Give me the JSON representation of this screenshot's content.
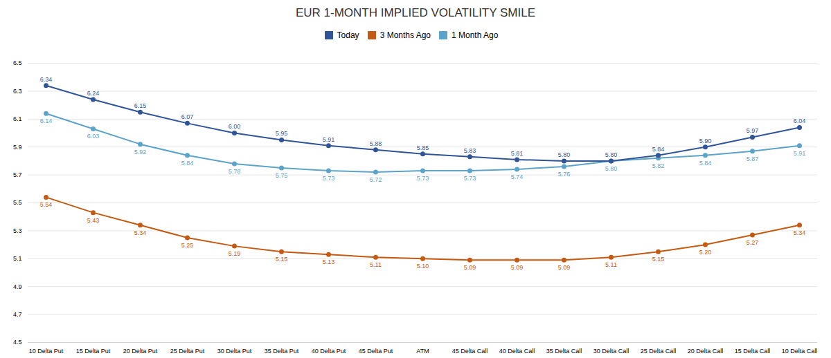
{
  "chart_data": {
    "type": "line",
    "title": "EUR 1-MONTH IMPLIED VOLATILITY SMILE",
    "categories": [
      "10 Delta Put",
      "15 Delta Put",
      "20 Delta Put",
      "25 Delta Put",
      "30 Delta Put",
      "35 Delta Put",
      "40 Delta Put",
      "45 Delta Put",
      "ATM",
      "45 Delta Call",
      "40 Delta Call",
      "35 Delta Call",
      "30 Delta Call",
      "25 Delta Call",
      "20 Delta Call",
      "15 Delta Call",
      "10 Delta Call"
    ],
    "series": [
      {
        "name": "Today",
        "color": "#2f5597",
        "values": [
          6.34,
          6.24,
          6.15,
          6.07,
          6.0,
          5.95,
          5.91,
          5.88,
          5.85,
          5.83,
          5.81,
          5.8,
          5.8,
          5.84,
          5.9,
          5.97,
          6.04
        ],
        "value_labels": [
          "6.34",
          "6.24",
          "6.15",
          "6.07",
          "6.00",
          "5.95",
          "5.91",
          "5.88",
          "5.85",
          "5.83",
          "5.81",
          "5.80",
          "5.80",
          "5.84",
          "5.90",
          "5.97",
          "6.04"
        ]
      },
      {
        "name": "3 Months Ago",
        "color": "#c45911",
        "values": [
          5.54,
          5.43,
          5.34,
          5.25,
          5.19,
          5.15,
          5.13,
          5.11,
          5.1,
          5.09,
          5.09,
          5.09,
          5.11,
          5.15,
          5.2,
          5.27,
          5.34
        ],
        "value_labels": [
          "5.54",
          "5.43",
          "5.34",
          "5.25",
          "5.19",
          "5.15",
          "5.13",
          "5.11",
          "5.10",
          "5.09",
          "5.09",
          "5.09",
          "5.11",
          "5.15",
          "5.20",
          "5.27",
          "5.34"
        ]
      },
      {
        "name": "1 Month Ago",
        "color": "#5ba3c9",
        "values": [
          6.14,
          6.03,
          5.92,
          5.84,
          5.78,
          5.75,
          5.73,
          5.72,
          5.73,
          5.73,
          5.74,
          5.76,
          5.8,
          5.82,
          5.84,
          5.87,
          5.91
        ],
        "value_labels": [
          "6.14",
          "6.03",
          "5.92",
          "5.84",
          "5.78",
          "5.75",
          "5.73",
          "5.72",
          "5.73",
          "5.73",
          "5.74",
          "5.76",
          "5.80",
          "5.82",
          "5.84",
          "5.87",
          "5.91"
        ]
      }
    ],
    "ylim": [
      4.5,
      6.5
    ],
    "yticks": [
      4.5,
      4.7,
      4.9,
      5.1,
      5.3,
      5.5,
      5.7,
      5.9,
      6.1,
      6.3,
      6.5
    ],
    "grid": true,
    "legend": "top",
    "marker": "circle",
    "data_labels": true
  }
}
